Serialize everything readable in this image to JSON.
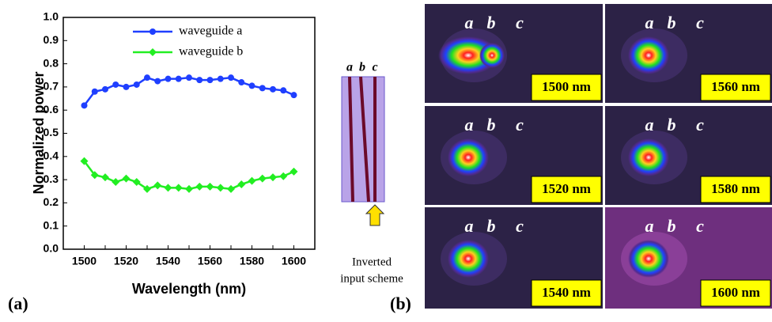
{
  "chart_data": {
    "type": "line",
    "x_label": "Wavelength (nm)",
    "y_label": "Normalized power",
    "x": [
      1500,
      1505,
      1510,
      1515,
      1520,
      1525,
      1530,
      1535,
      1540,
      1545,
      1550,
      1555,
      1560,
      1565,
      1570,
      1575,
      1580,
      1585,
      1590,
      1595,
      1600
    ],
    "series": [
      {
        "name": "waveguide a",
        "color": "#1f3fff",
        "marker": "circle",
        "values": [
          0.62,
          0.68,
          0.69,
          0.71,
          0.7,
          0.71,
          0.74,
          0.725,
          0.735,
          0.735,
          0.74,
          0.73,
          0.73,
          0.735,
          0.74,
          0.72,
          0.705,
          0.695,
          0.69,
          0.685,
          0.665
        ]
      },
      {
        "name": "waveguide b",
        "color": "#22ee22",
        "marker": "diamond",
        "values": [
          0.38,
          0.32,
          0.31,
          0.29,
          0.305,
          0.29,
          0.26,
          0.275,
          0.265,
          0.265,
          0.26,
          0.27,
          0.27,
          0.265,
          0.26,
          0.28,
          0.295,
          0.305,
          0.31,
          0.315,
          0.335
        ]
      }
    ],
    "xlim": [
      1490,
      1610
    ],
    "ylim": [
      0,
      1
    ],
    "xticks": [
      1500,
      1510,
      1520,
      1530,
      1540,
      1550,
      1560,
      1570,
      1580,
      1590,
      1600
    ],
    "yticks": [
      {
        "value": 0,
        "label": "0.0"
      },
      0.1,
      0.2,
      0.3,
      0.4,
      0.5,
      0.6,
      0.7,
      0.8,
      0.9,
      {
        "value": 1,
        "label": "1.0"
      }
    ]
  },
  "panel_labels": [
    "(a)",
    "(b)"
  ],
  "scheme": {
    "waveguides": [
      "a",
      "b",
      "c"
    ],
    "caption": [
      "Inverted",
      "input scheme"
    ]
  },
  "mode_labels": [
    "a",
    "b",
    "c"
  ],
  "images": [
    "1500 nm",
    "1560 nm",
    "1520 nm",
    "1580 nm",
    "1540 nm",
    "1600 nm"
  ]
}
